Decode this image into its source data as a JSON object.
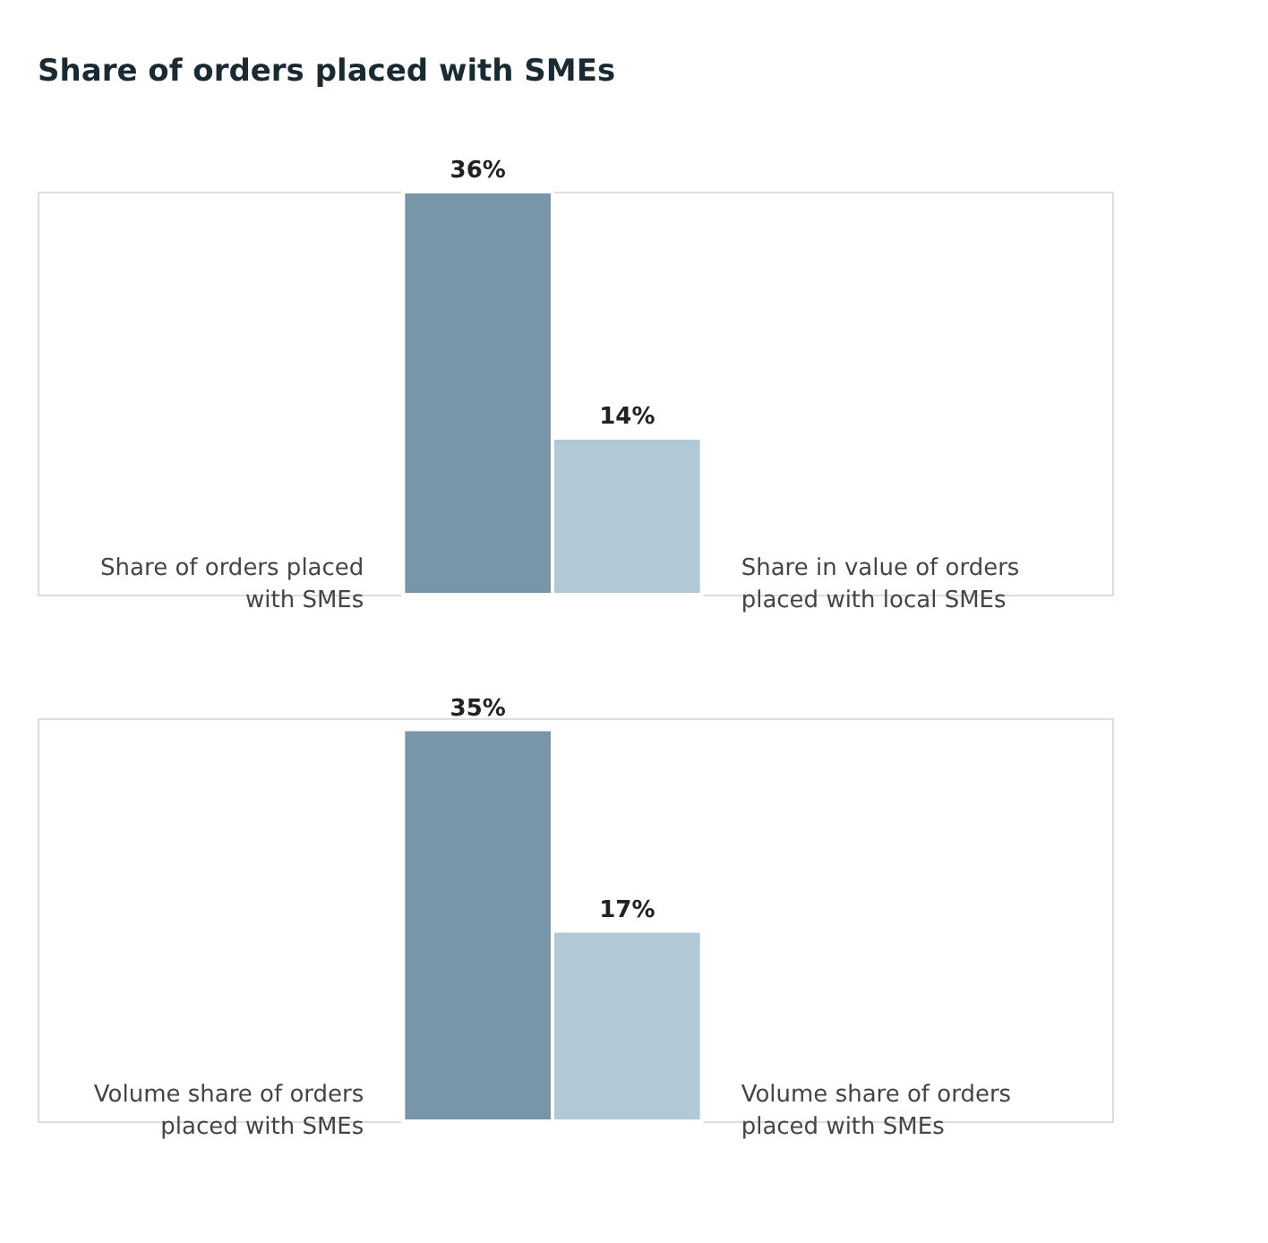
{
  "chart_data": [
    {
      "type": "bar",
      "title": "Share of orders placed with SMEs",
      "categories": [
        "Share of orders placed with SMEs",
        "Share in value of orders placed with local SMEs"
      ],
      "values": [
        36,
        14
      ],
      "value_labels": [
        "36%",
        "14%"
      ],
      "colors": [
        "#7896a8",
        "#b0c9d4"
      ]
    },
    {
      "type": "bar",
      "categories": [
        "Volume share of orders placed with SMEs",
        "Volume share of orders placed with SMEs"
      ],
      "values": [
        35,
        17
      ],
      "value_labels": [
        "35%",
        "17%"
      ],
      "colors": [
        "#7896a8",
        "#b0c9d4"
      ]
    }
  ]
}
